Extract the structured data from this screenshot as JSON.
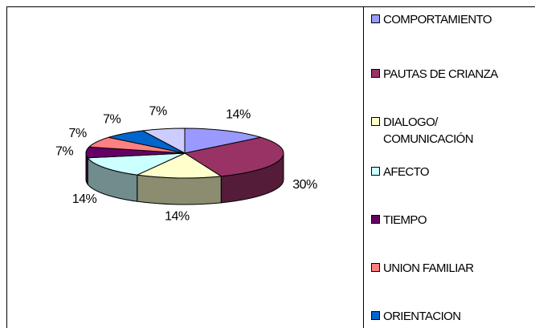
{
  "chart_data": {
    "type": "pie3d",
    "categories": [
      "COMPORTAMIENTO",
      "PAUTAS DE CRIANZA",
      "DIALOGO/ COMUNICACIÓN",
      "AFECTO",
      "TIEMPO",
      "UNION FAMILIAR",
      "ORIENTACION",
      null
    ],
    "values": [
      14,
      30,
      14,
      14,
      7,
      7,
      7,
      7
    ],
    "value_labels": [
      "14%",
      "30%",
      "14%",
      "14%",
      "7%",
      "7%",
      "7%",
      "7%"
    ],
    "colors": [
      "#9999ff",
      "#993366",
      "#ffffcc",
      "#ccffff",
      "#660066",
      "#ff8080",
      "#0066cc",
      "#ccccff"
    ]
  }
}
